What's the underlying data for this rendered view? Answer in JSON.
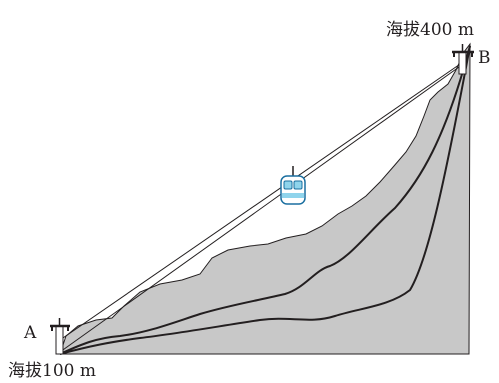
{
  "labels": {
    "point_a": "A",
    "point_b": "B",
    "altitude_a": "海拔100 m",
    "altitude_b": "海拔400 m"
  },
  "colors": {
    "mountain_fill": "#c8c8c8",
    "ink": "#231f20",
    "cabin_glass": "#8fd4ec"
  }
}
